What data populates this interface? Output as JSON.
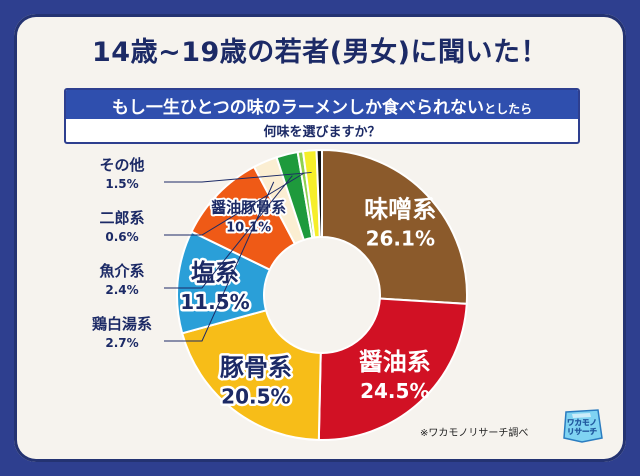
{
  "header": {
    "title": "14歳~19歳の若者(男女)に聞いた！",
    "question_line1_part1": "もし一生ひとつの味のラーメンしか食べられない",
    "question_line1_part2": "としたら",
    "question_line2": "何味を選びますか？"
  },
  "credit": "※ワカモノリサーチ調べ",
  "logo": {
    "line1": "ワカモノ",
    "line2": "リサーチ"
  },
  "colors": {
    "background": "#2e3f8f",
    "sheet": "#f6f3ee",
    "question_band": "#2f4fae"
  },
  "chart_data": {
    "type": "pie",
    "variant": "donut",
    "unit": "%",
    "title": "",
    "slices": [
      {
        "name": "味噌系",
        "value": 26.1,
        "label": "26.1%",
        "color": "#8b5a2b",
        "label_style": "inside-large"
      },
      {
        "name": "醤油系",
        "value": 24.5,
        "label": "24.5%",
        "color": "#d11124",
        "label_style": "inside-large"
      },
      {
        "name": "豚骨系",
        "value": 20.5,
        "label": "20.5%",
        "color": "#f7bd18",
        "label_style": "inside-large"
      },
      {
        "name": "塩系",
        "value": 11.5,
        "label": "11.5%",
        "color": "#2a9fd8",
        "label_style": "inside-large"
      },
      {
        "name": "醤油豚骨系",
        "value": 10.1,
        "label": "10.1%",
        "color": "#ef5a16",
        "label_style": "inside-small"
      },
      {
        "name": "鶏白湯系",
        "value": 2.7,
        "label": "2.7%",
        "color": "#fbeed2",
        "label_style": "outside"
      },
      {
        "name": "魚介系",
        "value": 2.4,
        "label": "2.4%",
        "color": "#1e9a3c",
        "label_style": "outside"
      },
      {
        "name": "二郎系",
        "value": 0.6,
        "label": "0.6%",
        "color": "#8fd14f",
        "label_style": "outside"
      },
      {
        "name": "その他",
        "value": 1.5,
        "label": "1.5%",
        "color": "#f6ee2a",
        "label_style": "outside"
      },
      {
        "name": "",
        "value": 0.6,
        "label": "",
        "color": "#111111",
        "label_style": "none"
      }
    ]
  }
}
